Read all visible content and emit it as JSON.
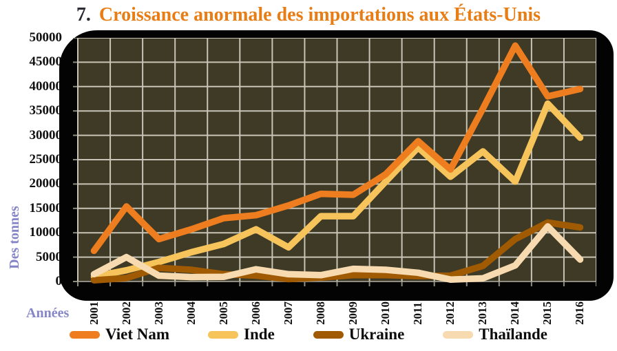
{
  "title": {
    "prefix": "7.",
    "text": "Croissance anormale des importations aux États-Unis"
  },
  "y_axis": {
    "title": "Des tonnes"
  },
  "x_axis": {
    "title": "Années"
  },
  "colors": {
    "title_accent": "#e87d15",
    "axis_title": "#8585c7",
    "plot_background": "#3e3a25",
    "plot_frame": "#030303",
    "gridline": "#c8c5b8",
    "axis_line": "#8f8c82"
  },
  "chart_data": {
    "type": "line",
    "title": "7. Croissance anormale des importations aux États-Unis",
    "xlabel": "Années",
    "ylabel": "Des tonnes",
    "ylim": [
      0,
      50000
    ],
    "y_step": 5000,
    "grid": true,
    "legend_position": "bottom",
    "x": [
      "2001",
      "2002",
      "2003",
      "2004",
      "2005",
      "2006",
      "2007",
      "2008",
      "2009",
      "2010",
      "2011",
      "2012",
      "2013",
      "2014",
      "2015",
      "2016"
    ],
    "series": [
      {
        "name": "Viet Nam",
        "color": "#ed7d1e",
        "values": [
          6300,
          15400,
          8700,
          10700,
          13000,
          13600,
          15600,
          18000,
          17800,
          22000,
          28800,
          23000,
          35500,
          48400,
          38000,
          39500
        ]
      },
      {
        "name": "Inde",
        "color": "#f6c45a",
        "values": [
          1000,
          2300,
          4000,
          6000,
          7700,
          10700,
          7000,
          13400,
          13400,
          20500,
          27500,
          21500,
          26700,
          20500,
          36500,
          29500
        ]
      },
      {
        "name": "Ukraine",
        "color": "#a05a02",
        "values": [
          250,
          700,
          2800,
          2400,
          1500,
          1200,
          500,
          800,
          1300,
          1300,
          1100,
          1200,
          3200,
          8700,
          12100,
          11100
        ]
      },
      {
        "name": "Thaïlande",
        "color": "#f8dab0",
        "values": [
          1500,
          5000,
          1200,
          900,
          950,
          2500,
          1500,
          1300,
          2600,
          2400,
          1800,
          400,
          650,
          3300,
          11300,
          4500
        ]
      }
    ]
  }
}
